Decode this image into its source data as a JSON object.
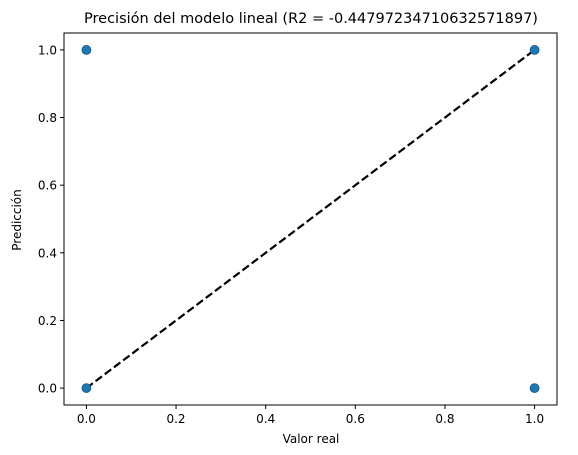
{
  "chart_data": {
    "type": "scatter",
    "title": "Precisión del modelo lineal (R2 = -0.44797234710632571897)",
    "xlabel": "Valor real",
    "ylabel": "Predicción",
    "xlim": [
      -0.05,
      1.05
    ],
    "ylim": [
      -0.05,
      1.05
    ],
    "xticks": [
      0.0,
      0.2,
      0.4,
      0.6,
      0.8,
      1.0
    ],
    "yticks": [
      0.0,
      0.2,
      0.4,
      0.6,
      0.8,
      1.0
    ],
    "xtick_labels": [
      "0.0",
      "0.2",
      "0.4",
      "0.6",
      "0.8",
      "1.0"
    ],
    "ytick_labels": [
      "0.0",
      "0.2",
      "0.4",
      "0.6",
      "0.8",
      "1.0"
    ],
    "grid": false,
    "points": [
      {
        "x": 0,
        "y": 0
      },
      {
        "x": 0,
        "y": 1
      },
      {
        "x": 1,
        "y": 0
      },
      {
        "x": 1,
        "y": 1
      }
    ],
    "reference_line": {
      "from": [
        0,
        0
      ],
      "to": [
        1,
        1
      ],
      "style": "dashed",
      "color": "#000000"
    },
    "point_color": "#1f77b4"
  }
}
